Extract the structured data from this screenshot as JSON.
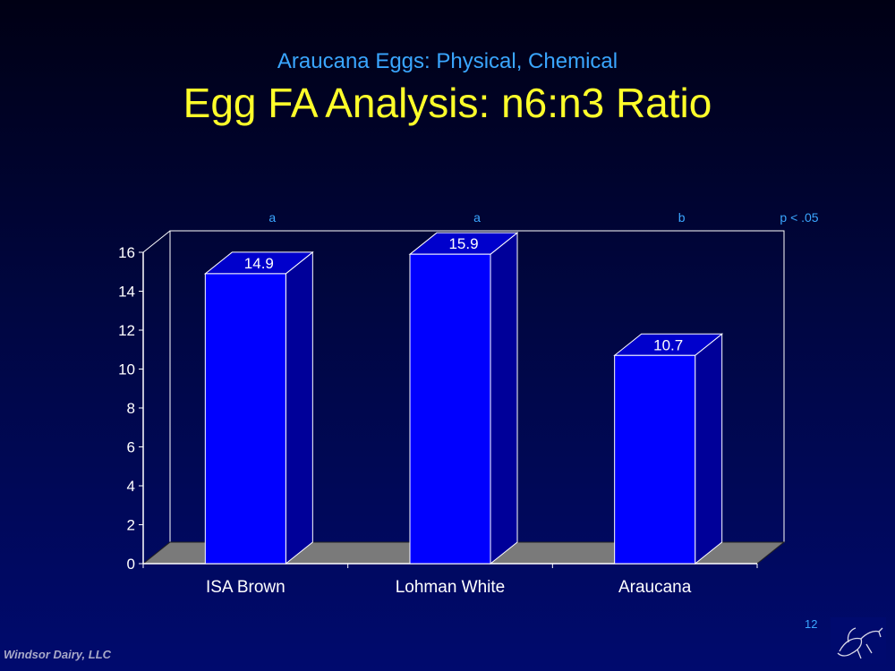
{
  "slide": {
    "subtitle": "Araucana Eggs: Physical, Chemical",
    "title": "Egg FA Analysis: n6:n3 Ratio",
    "footer": "Windsor Dairy, LLC",
    "page_number": "12"
  },
  "colors": {
    "bar_front": "#0000ff",
    "bar_side": "#000099",
    "bar_top": "#0000cc",
    "floor": "#7a7a7a",
    "subtitle": "#3aa6ff",
    "title": "#ffff2a"
  },
  "chart_data": {
    "type": "bar",
    "categories": [
      "ISA Brown",
      "Lohman White",
      "Araucana"
    ],
    "values": [
      14.9,
      15.9,
      10.7
    ],
    "data_labels": [
      "14.9",
      "15.9",
      "10.7"
    ],
    "significance_letters": [
      "a",
      "a",
      "b"
    ],
    "significance_note": "p < .05",
    "ylim": [
      0,
      16
    ],
    "yticks": [
      0,
      2,
      4,
      6,
      8,
      10,
      12,
      14,
      16
    ],
    "xlabel": "",
    "ylabel": "",
    "grid": false,
    "style": "3d-bar"
  }
}
